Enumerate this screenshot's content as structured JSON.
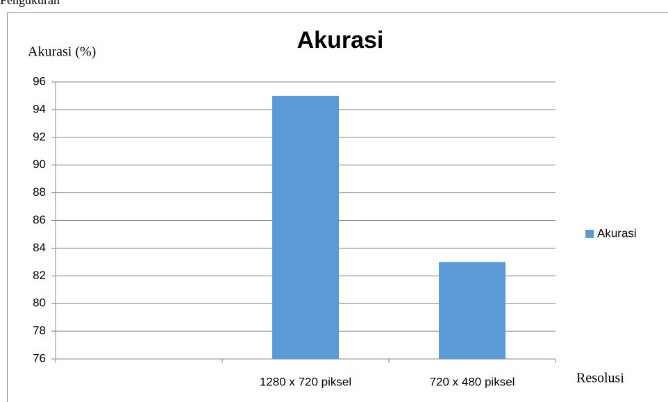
{
  "page_heading": "Pengukuran",
  "chart_data": {
    "type": "bar",
    "title": "Akurasi",
    "y_label": "Akurasi (%)",
    "x_label": "Resolusi",
    "categories": [
      null,
      "1280 x 720 piksel",
      "720 x 480 piksel"
    ],
    "series": [
      {
        "name": "Akurasi",
        "color": "#5b9bd5",
        "values": [
          null,
          95,
          83
        ]
      }
    ],
    "ylim": [
      76,
      96
    ],
    "yticks": [
      76,
      78,
      80,
      82,
      84,
      86,
      88,
      90,
      92,
      94,
      96
    ],
    "grid": true,
    "legend": "right"
  }
}
